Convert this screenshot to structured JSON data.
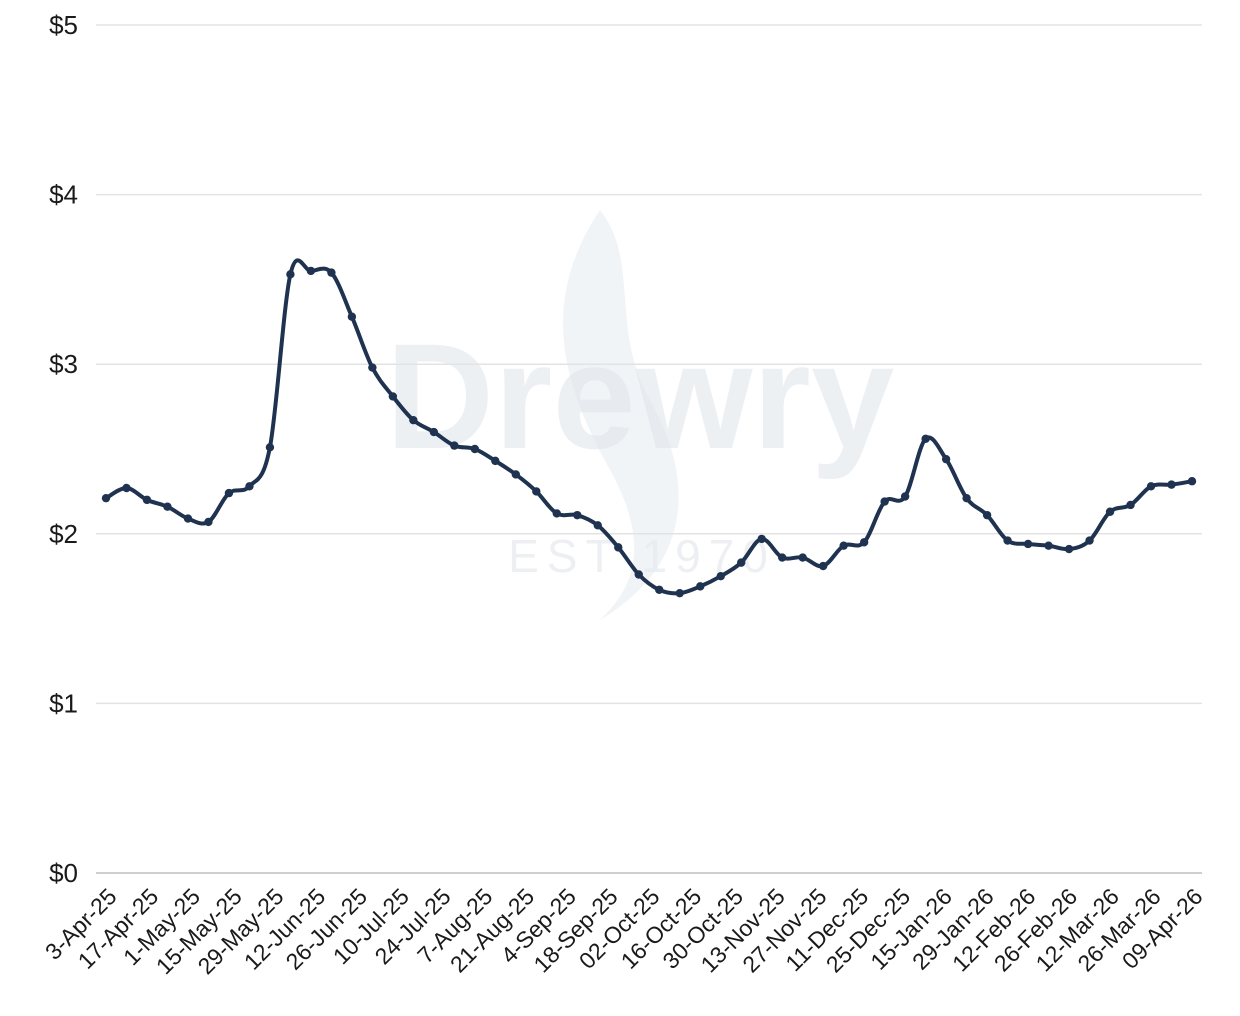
{
  "watermark": {
    "brand": "Drewry",
    "tagline": "EST 1970"
  },
  "chart_data": {
    "type": "line",
    "title": "",
    "xlabel": "",
    "ylabel": "",
    "ylim": [
      0,
      5
    ],
    "y_ticks": [
      0,
      1,
      2,
      3,
      4,
      5
    ],
    "y_tick_labels": [
      "$0",
      "$1",
      "$2",
      "$3",
      "$4",
      "$5"
    ],
    "grid": "horizontal",
    "line_color": "#1f3350",
    "x_tick_labels": [
      "3-Apr-25",
      "17-Apr-25",
      "1-May-25",
      "15-May-25",
      "29-May-25",
      "12-Jun-25",
      "26-Jun-25",
      "10-Jul-25",
      "24-Jul-25",
      "7-Aug-25",
      "21-Aug-25",
      "4-Sep-25",
      "18-Sep-25",
      "02-Oct-25",
      "16-Oct-25",
      "30-Oct-25",
      "13-Nov-25",
      "27-Nov-25",
      "11-Dec-25",
      "25-Dec-25",
      "15-Jan-26",
      "29-Jan-26",
      "12-Feb-26",
      "26-Feb-26",
      "12-Mar-26",
      "26-Mar-26",
      "09-Apr-26"
    ],
    "series": [
      {
        "values": [
          2.21,
          2.27,
          2.2,
          2.16,
          2.09,
          2.07,
          2.24,
          2.28,
          2.51,
          3.53,
          3.55,
          3.54,
          3.28,
          2.98,
          2.81,
          2.67,
          2.6,
          2.52,
          2.5,
          2.43,
          2.35,
          2.25,
          2.12,
          2.11,
          2.05,
          1.92,
          1.76,
          1.67,
          1.65,
          1.69,
          1.75,
          1.83,
          1.97,
          1.86,
          1.86,
          1.81,
          1.93,
          1.95,
          2.19,
          2.22,
          2.56,
          2.44,
          2.21,
          2.11,
          1.96,
          1.94,
          1.93,
          1.91,
          1.96,
          2.13,
          2.17,
          2.28,
          2.29,
          2.31
        ]
      }
    ]
  }
}
